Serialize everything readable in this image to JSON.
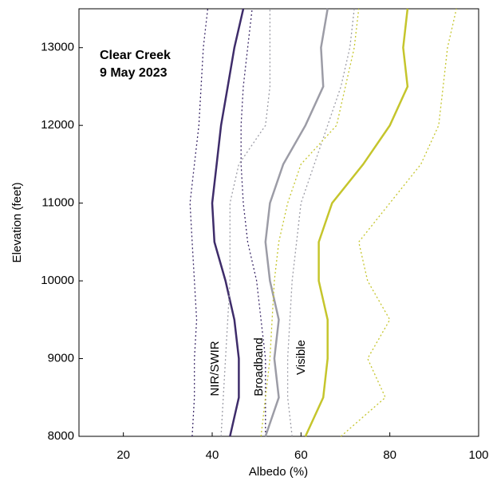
{
  "chart_data": {
    "type": "line",
    "title_lines": [
      "Clear Creek",
      "9 May 2023"
    ],
    "x_label": "Albedo (%)",
    "y_label": "Elevation (feet)",
    "xlim": [
      10,
      100
    ],
    "xticks": [
      20,
      40,
      60,
      80,
      100
    ],
    "ylim": [
      8000,
      13500
    ],
    "yticks": [
      8000,
      9000,
      10000,
      11000,
      12000,
      13000
    ],
    "elevation": [
      8000,
      8500,
      9000,
      9500,
      10000,
      10500,
      11000,
      11500,
      12000,
      12500,
      13000,
      13500
    ],
    "series": [
      {
        "name": "NIR/SWIR",
        "color": "#3e2c6a",
        "values": [
          44,
          46,
          46,
          45,
          43,
          40.5,
          40,
          41,
          42,
          43.5,
          45,
          47
        ],
        "lower": [
          35.5,
          36,
          36,
          36.5,
          36,
          35.5,
          35,
          36,
          37,
          37.5,
          38,
          39
        ],
        "upper": [
          52,
          52,
          52,
          51,
          50,
          48,
          47,
          46.5,
          46.5,
          47,
          48,
          49
        ]
      },
      {
        "name": "Broadband",
        "color": "#9c9ca6",
        "values": [
          52,
          55,
          54,
          55,
          53,
          52,
          53,
          56,
          61,
          65,
          64.5,
          66
        ],
        "lower": [
          42,
          42.5,
          43,
          43.5,
          44,
          44,
          44,
          46,
          52,
          53,
          53,
          53
        ],
        "upper": [
          58,
          57,
          57,
          57.5,
          58,
          59,
          60,
          63,
          66,
          69,
          71,
          72
        ]
      },
      {
        "name": "Visible",
        "color": "#c5c52c",
        "values": [
          61,
          65,
          66,
          66,
          64,
          64,
          67,
          74,
          80,
          84,
          83,
          84
        ],
        "lower": [
          51,
          52,
          53,
          53.5,
          54,
          55,
          57,
          60,
          68,
          70,
          72,
          73
        ],
        "upper": [
          69,
          79,
          75,
          80,
          75,
          73,
          80,
          87,
          91,
          92,
          93,
          95
        ]
      }
    ]
  }
}
